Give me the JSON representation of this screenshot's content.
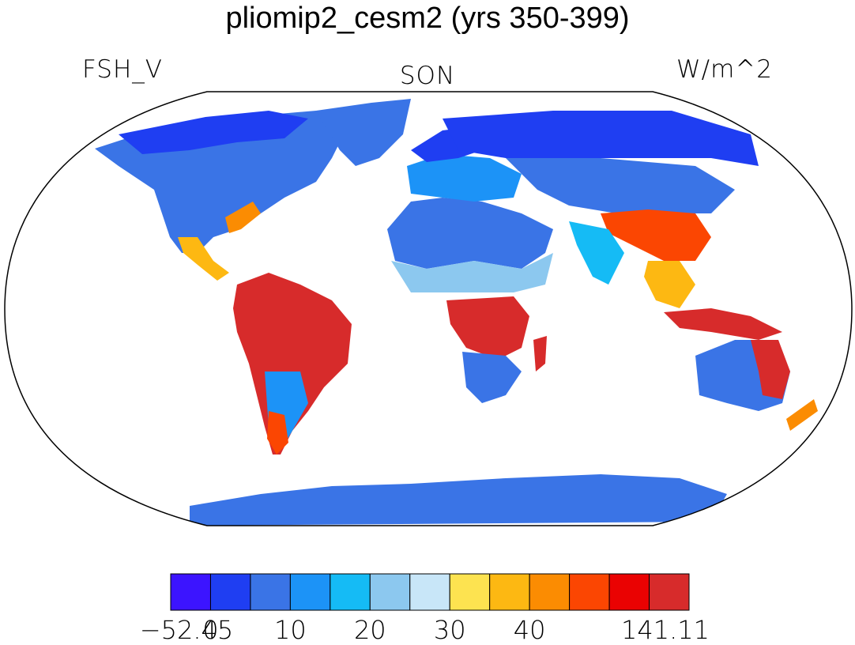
{
  "title": "pliomip2_cesm2 (yrs 350-399)",
  "labels": {
    "left": "FSH_V",
    "center": "SON",
    "right": "W/m^2"
  },
  "colorbar": {
    "colors": [
      "#3c14ff",
      "#1f3ef2",
      "#3a74e6",
      "#1c93f7",
      "#15bbf5",
      "#8cc8ef",
      "#c8e6f8",
      "#fde350",
      "#fdb812",
      "#fb8c02",
      "#fb4602",
      "#ea0202",
      "#d72b2b"
    ],
    "tick_labels": [
      "−52.45",
      "0",
      "10",
      "20",
      "30",
      "40",
      "141.11"
    ],
    "tick_boundaries": [
      0,
      1,
      3,
      5,
      7,
      9,
      13
    ]
  }
}
